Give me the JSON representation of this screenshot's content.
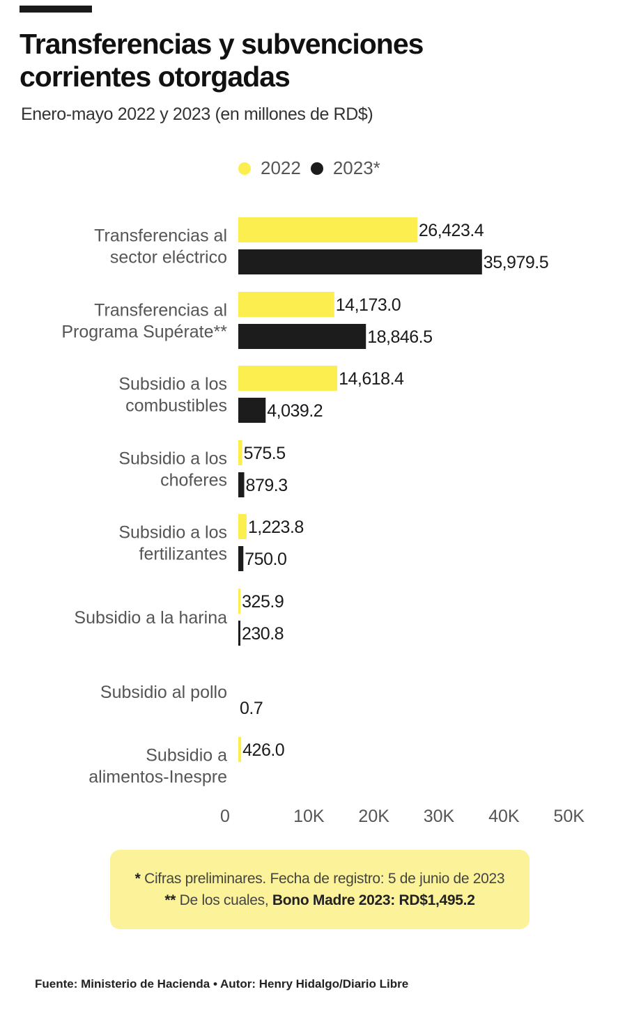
{
  "title_line1": "Transferencias y subvenciones",
  "title_line2": "corrientes otorgadas",
  "subtitle": "Enero-mayo 2022 y 2023 (en millones de RD$)",
  "colors": {
    "y2022": "#fcee4f",
    "y2023": "#1c1c1c",
    "note_bg": "#fbf29a"
  },
  "chart_data": {
    "type": "bar",
    "orientation": "horizontal",
    "categories": [
      [
        "Transferencias al",
        "sector eléctrico"
      ],
      [
        "Transferencias al",
        "Programa Supérate**"
      ],
      [
        "Subsidio a los",
        "combustibles"
      ],
      [
        "Subsidio a los",
        "choferes"
      ],
      [
        "Subsidio a los",
        "fertilizantes"
      ],
      [
        "Subsidio a la harina"
      ],
      [
        "Subsidio al pollo"
      ],
      [
        "Subsidio a",
        "alimentos-Inespre"
      ]
    ],
    "series": [
      {
        "name": "2022",
        "color": "#fcee4f",
        "values": [
          26423.4,
          14173.0,
          14618.4,
          575.5,
          1223.8,
          325.9,
          null,
          426.0
        ],
        "labels": [
          "26,423.4",
          "14,173.0",
          "14,618.4",
          "575.5",
          "1,223.8",
          "325.9",
          "",
          "426.0"
        ]
      },
      {
        "name": "2023*",
        "color": "#1c1c1c",
        "values": [
          35979.5,
          18846.5,
          4039.2,
          879.3,
          750.0,
          230.8,
          0.7,
          null
        ],
        "labels": [
          "35,979.5",
          "18,846.5",
          "4,039.2",
          "879.3",
          "750.0",
          "230.8",
          "0.7",
          ""
        ]
      }
    ],
    "xlim": [
      0,
      50000
    ],
    "xticks": [
      0,
      10000,
      20000,
      30000,
      40000,
      50000
    ],
    "xtick_labels": [
      "0",
      "10K",
      "20K",
      "30K",
      "40K",
      "50K"
    ],
    "title": "Transferencias y subvenciones corrientes otorgadas",
    "xlabel": "",
    "ylabel": ""
  },
  "notes": {
    "note1_mark": "*",
    "note1_text": " Cifras preliminares. Fecha de registro: 5 de junio de 2023",
    "note2_mark": "**",
    "note2_text": " De los cuales, ",
    "note2_bold": "Bono Madre 2023: RD$1,495.2"
  },
  "source": "Fuente: Ministerio de Hacienda • Autor: Henry Hidalgo/Diario Libre"
}
